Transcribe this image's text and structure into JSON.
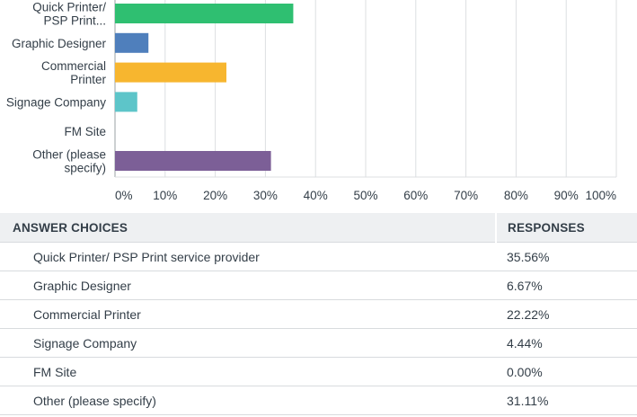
{
  "chart_data": {
    "type": "bar",
    "orientation": "horizontal",
    "categories": [
      [
        "Quick Printer/",
        "PSP Print..."
      ],
      [
        "Graphic Designer"
      ],
      [
        "Commercial",
        "Printer"
      ],
      [
        "Signage Company"
      ],
      [
        "FM Site"
      ],
      [
        "Other (please",
        "specify)"
      ]
    ],
    "values": [
      35.56,
      6.67,
      22.22,
      4.44,
      0.0,
      31.11
    ],
    "colors": [
      "#2fbf71",
      "#4f7fbc",
      "#f7b62f",
      "#5dc5c9",
      "#e05c7c",
      "#7c5f97"
    ],
    "xlim": [
      0,
      100
    ],
    "xticks": [
      "0%",
      "10%",
      "20%",
      "30%",
      "40%",
      "50%",
      "60%",
      "70%",
      "80%",
      "90%",
      "100%"
    ],
    "grid": true,
    "legend": "none"
  },
  "table": {
    "header_choice": "ANSWER CHOICES",
    "header_responses": "RESPONSES",
    "rows": [
      {
        "choice": "Quick Printer/ PSP Print service provider",
        "response": "35.56%"
      },
      {
        "choice": "Graphic Designer",
        "response": "6.67%"
      },
      {
        "choice": "Commercial Printer",
        "response": "22.22%"
      },
      {
        "choice": "Signage Company",
        "response": "4.44%"
      },
      {
        "choice": "FM Site",
        "response": "0.00%"
      },
      {
        "choice": "Other (please specify)",
        "response": "31.11%"
      }
    ]
  }
}
